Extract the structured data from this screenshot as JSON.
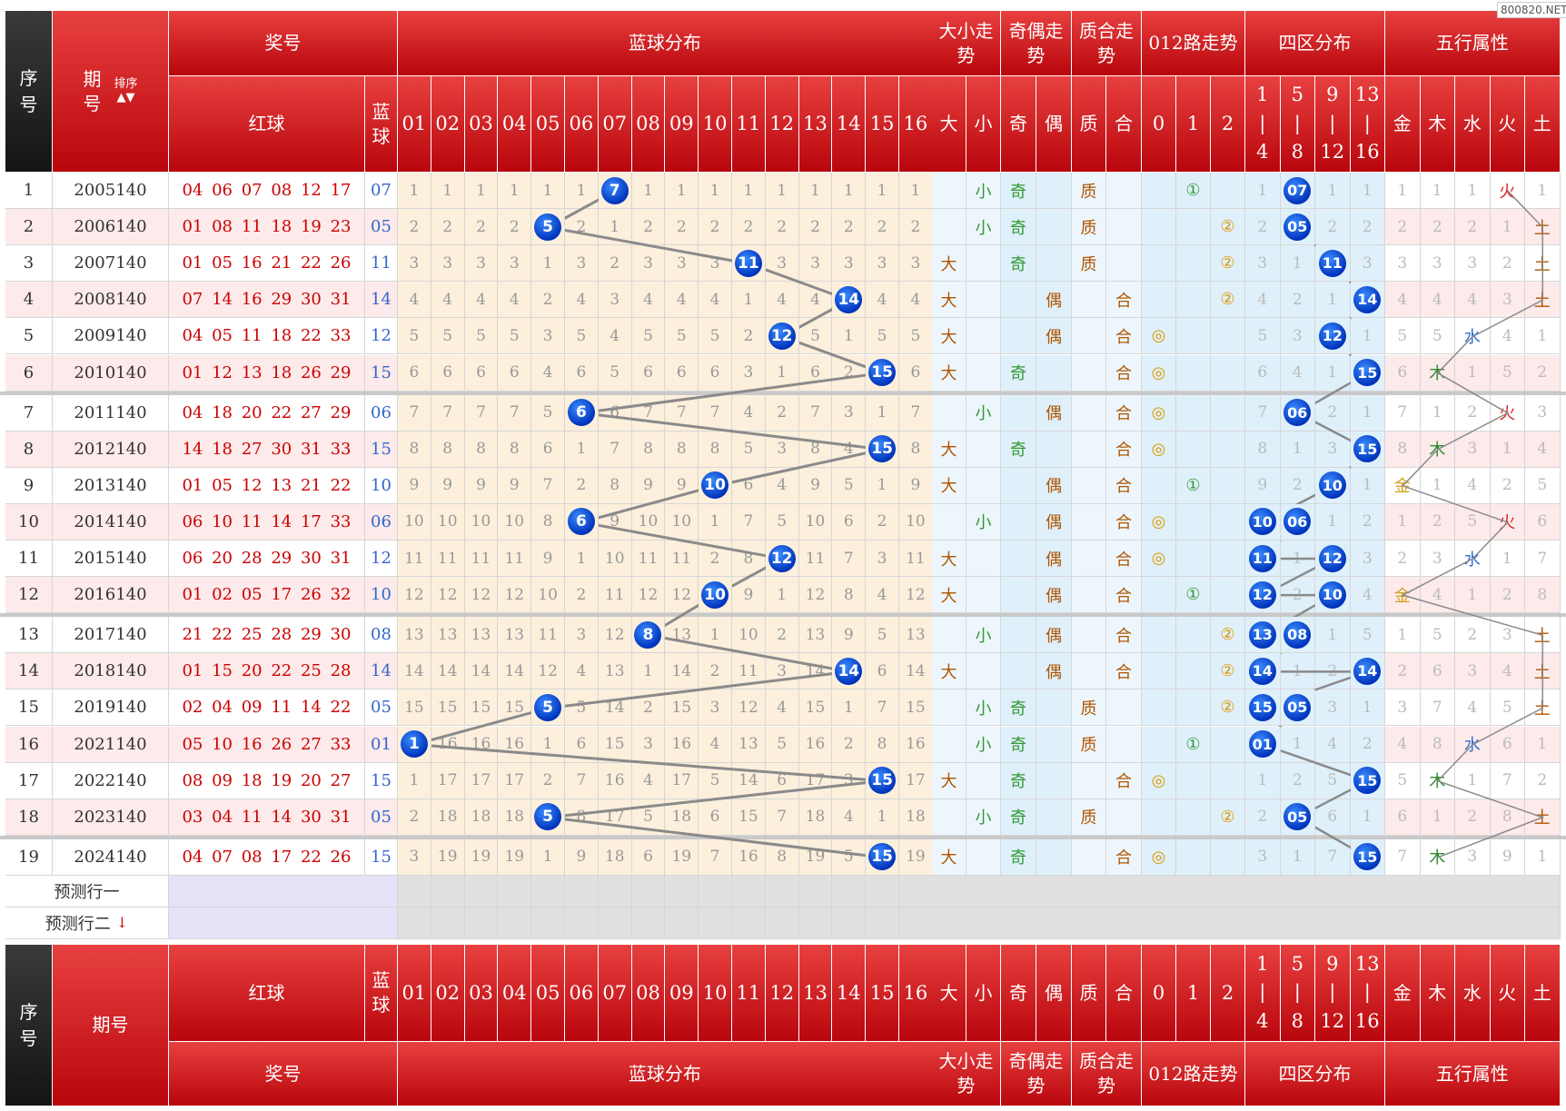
{
  "watermark": "800820.NET",
  "header": {
    "seq": "序号",
    "issue": "期号",
    "sort_label": "排序",
    "sort_arrows": "▲▼",
    "prize": "奖号",
    "blue_dist": "蓝球分布",
    "size_trend": "大小走势",
    "parity_trend": "奇偶走势",
    "prime_trend": "质合走势",
    "road_trend": "012路走势",
    "zone_dist": "四区分布",
    "wx": "五行属性",
    "red_ball": "红球",
    "blue_ball": "蓝球",
    "nums": [
      "01",
      "02",
      "03",
      "04",
      "05",
      "06",
      "07",
      "08",
      "09",
      "10",
      "11",
      "12",
      "13",
      "14",
      "15",
      "16"
    ],
    "big": "大",
    "small": "小",
    "odd": "奇",
    "even": "偶",
    "prime": "质",
    "composite": "合",
    "road": [
      "0",
      "1",
      "2"
    ],
    "zones": [
      {
        "a": "1",
        "b": "4"
      },
      {
        "a": "5",
        "b": "8"
      },
      {
        "a": "9",
        "b": "12"
      },
      {
        "a": "13",
        "b": "16"
      }
    ],
    "zone_sep": "|",
    "wx_names": [
      "金",
      "木",
      "水",
      "火",
      "土"
    ]
  },
  "rows": [
    {
      "seq": "1",
      "issue": "2005140",
      "red": "04 06 07 08 12 17",
      "blue": "07",
      "blue_miss": [
        "1",
        "1",
        "1",
        "1",
        "1",
        "1",
        "",
        "1",
        "1",
        "1",
        "1",
        "1",
        "1",
        "1",
        "1",
        "1"
      ],
      "size": "小",
      "parity": "奇",
      "prime": "质",
      "road": "①",
      "zone": [
        "1",
        "07",
        "1",
        "1"
      ],
      "wx": [
        "1",
        "1",
        "1",
        "火",
        "1"
      ]
    },
    {
      "seq": "2",
      "issue": "2006140",
      "red": "01 08 11 18 19 23",
      "blue": "05",
      "blue_miss": [
        "2",
        "2",
        "2",
        "2",
        "",
        "2",
        "1",
        "2",
        "2",
        "2",
        "2",
        "2",
        "2",
        "2",
        "2",
        "2"
      ],
      "size": "小",
      "parity": "奇",
      "prime": "质",
      "road": "②",
      "zone": [
        "2",
        "05",
        "2",
        "2"
      ],
      "wx": [
        "2",
        "2",
        "2",
        "1",
        "土"
      ]
    },
    {
      "seq": "3",
      "issue": "2007140",
      "red": "01 05 16 21 22 26",
      "blue": "11",
      "blue_miss": [
        "3",
        "3",
        "3",
        "3",
        "1",
        "3",
        "2",
        "3",
        "3",
        "3",
        "",
        "3",
        "3",
        "3",
        "3",
        "3"
      ],
      "size": "大",
      "parity": "奇",
      "prime": "质",
      "road": "②",
      "zone": [
        "3",
        "1",
        "11",
        "3"
      ],
      "wx": [
        "3",
        "3",
        "3",
        "2",
        "土"
      ]
    },
    {
      "seq": "4",
      "issue": "2008140",
      "red": "07 14 16 29 30 31",
      "blue": "14",
      "blue_miss": [
        "4",
        "4",
        "4",
        "4",
        "2",
        "4",
        "3",
        "4",
        "4",
        "4",
        "1",
        "4",
        "4",
        "",
        "4",
        "4"
      ],
      "size": "大",
      "parity": "偶",
      "prime": "合",
      "road": "②",
      "zone": [
        "4",
        "2",
        "1",
        "14"
      ],
      "wx": [
        "4",
        "4",
        "4",
        "3",
        "土"
      ]
    },
    {
      "seq": "5",
      "issue": "2009140",
      "red": "04 05 11 18 22 33",
      "blue": "12",
      "blue_miss": [
        "5",
        "5",
        "5",
        "5",
        "3",
        "5",
        "4",
        "5",
        "5",
        "5",
        "2",
        "",
        "5",
        "1",
        "5",
        "5"
      ],
      "size": "大",
      "parity": "偶",
      "prime": "合",
      "road": "◎",
      "zone": [
        "5",
        "3",
        "12",
        "1"
      ],
      "wx": [
        "5",
        "5",
        "水",
        "4",
        "1"
      ]
    },
    {
      "seq": "6",
      "issue": "2010140",
      "red": "01 12 13 18 26 29",
      "blue": "15",
      "blue_miss": [
        "6",
        "6",
        "6",
        "6",
        "4",
        "6",
        "5",
        "6",
        "6",
        "6",
        "3",
        "1",
        "6",
        "2",
        "",
        "6"
      ],
      "size": "大",
      "parity": "奇",
      "prime": "合",
      "road": "◎",
      "zone": [
        "6",
        "4",
        "1",
        "15"
      ],
      "wx": [
        "6",
        "木",
        "1",
        "5",
        "2"
      ]
    },
    {
      "seq": "7",
      "issue": "2011140",
      "red": "04 18 20 22 27 29",
      "blue": "06",
      "blue_miss": [
        "7",
        "7",
        "7",
        "7",
        "5",
        "",
        "6",
        "7",
        "7",
        "7",
        "4",
        "2",
        "7",
        "3",
        "1",
        "7"
      ],
      "size": "小",
      "parity": "偶",
      "prime": "合",
      "road": "◎",
      "zone": [
        "7",
        "06",
        "2",
        "1"
      ],
      "wx": [
        "7",
        "1",
        "2",
        "火",
        "3"
      ]
    },
    {
      "seq": "8",
      "issue": "2012140",
      "red": "14 18 27 30 31 33",
      "blue": "15",
      "blue_miss": [
        "8",
        "8",
        "8",
        "8",
        "6",
        "1",
        "7",
        "8",
        "8",
        "8",
        "5",
        "3",
        "8",
        "4",
        "",
        "8"
      ],
      "size": "大",
      "parity": "奇",
      "prime": "合",
      "road": "◎",
      "zone": [
        "8",
        "1",
        "3",
        "15"
      ],
      "wx": [
        "8",
        "木",
        "3",
        "1",
        "4"
      ]
    },
    {
      "seq": "9",
      "issue": "2013140",
      "red": "01 05 12 13 21 22",
      "blue": "10",
      "blue_miss": [
        "9",
        "9",
        "9",
        "9",
        "7",
        "2",
        "8",
        "9",
        "9",
        "",
        "6",
        "4",
        "9",
        "5",
        "1",
        "9"
      ],
      "size": "大",
      "parity": "偶",
      "prime": "合",
      "road": "①",
      "zone": [
        "9",
        "2",
        "10",
        "1"
      ],
      "wx": [
        "金",
        "1",
        "4",
        "2",
        "5"
      ]
    },
    {
      "seq": "10",
      "issue": "2014140",
      "red": "06 10 11 14 17 33",
      "blue": "06",
      "blue_miss": [
        "10",
        "10",
        "10",
        "10",
        "8",
        "",
        "9",
        "10",
        "10",
        "1",
        "7",
        "5",
        "10",
        "6",
        "2",
        "10"
      ],
      "size": "小",
      "parity": "偶",
      "prime": "合",
      "road": "◎",
      "zone": [
        "10",
        "06",
        "1",
        "2"
      ],
      "wx": [
        "1",
        "2",
        "5",
        "火",
        "6"
      ]
    },
    {
      "seq": "11",
      "issue": "2015140",
      "red": "06 20 28 29 30 31",
      "blue": "12",
      "blue_miss": [
        "11",
        "11",
        "11",
        "11",
        "9",
        "1",
        "10",
        "11",
        "11",
        "2",
        "8",
        "",
        "11",
        "7",
        "3",
        "11"
      ],
      "size": "大",
      "parity": "偶",
      "prime": "合",
      "road": "◎",
      "zone": [
        "11",
        "1",
        "12",
        "3"
      ],
      "wx": [
        "2",
        "3",
        "水",
        "1",
        "7"
      ]
    },
    {
      "seq": "12",
      "issue": "2016140",
      "red": "01 02 05 17 26 32",
      "blue": "10",
      "blue_miss": [
        "12",
        "12",
        "12",
        "12",
        "10",
        "2",
        "11",
        "12",
        "12",
        "",
        "9",
        "1",
        "12",
        "8",
        "4",
        "12"
      ],
      "size": "大",
      "parity": "偶",
      "prime": "合",
      "road": "①",
      "zone": [
        "12",
        "2",
        "10",
        "4"
      ],
      "wx": [
        "金",
        "4",
        "1",
        "2",
        "8"
      ]
    },
    {
      "seq": "13",
      "issue": "2017140",
      "red": "21 22 25 28 29 30",
      "blue": "08",
      "blue_miss": [
        "13",
        "13",
        "13",
        "13",
        "11",
        "3",
        "12",
        "",
        "13",
        "1",
        "10",
        "2",
        "13",
        "9",
        "5",
        "13"
      ],
      "size": "小",
      "parity": "偶",
      "prime": "合",
      "road": "②",
      "zone": [
        "13",
        "08",
        "1",
        "5"
      ],
      "wx": [
        "1",
        "5",
        "2",
        "3",
        "土"
      ]
    },
    {
      "seq": "14",
      "issue": "2018140",
      "red": "01 15 20 22 25 28",
      "blue": "14",
      "blue_miss": [
        "14",
        "14",
        "14",
        "14",
        "12",
        "4",
        "13",
        "1",
        "14",
        "2",
        "11",
        "3",
        "14",
        "",
        "6",
        "14"
      ],
      "size": "大",
      "parity": "偶",
      "prime": "合",
      "road": "②",
      "zone": [
        "14",
        "1",
        "2",
        "14"
      ],
      "wx": [
        "2",
        "6",
        "3",
        "4",
        "土"
      ]
    },
    {
      "seq": "15",
      "issue": "2019140",
      "red": "02 04 09 11 14 22",
      "blue": "05",
      "blue_miss": [
        "15",
        "15",
        "15",
        "15",
        "",
        "5",
        "14",
        "2",
        "15",
        "3",
        "12",
        "4",
        "15",
        "1",
        "7",
        "15"
      ],
      "size": "小",
      "parity": "奇",
      "prime": "质",
      "road": "②",
      "zone": [
        "15",
        "05",
        "3",
        "1"
      ],
      "wx": [
        "3",
        "7",
        "4",
        "5",
        "土"
      ]
    },
    {
      "seq": "16",
      "issue": "2021140",
      "red": "05 10 16 26 27 33",
      "blue": "01",
      "blue_miss": [
        "",
        "16",
        "16",
        "16",
        "1",
        "6",
        "15",
        "3",
        "16",
        "4",
        "13",
        "5",
        "16",
        "2",
        "8",
        "16"
      ],
      "size": "小",
      "parity": "奇",
      "prime": "质",
      "road": "①",
      "zone": [
        "01",
        "1",
        "4",
        "2"
      ],
      "wx": [
        "4",
        "8",
        "水",
        "6",
        "1"
      ]
    },
    {
      "seq": "17",
      "issue": "2022140",
      "red": "08 09 18 19 20 27",
      "blue": "15",
      "blue_miss": [
        "1",
        "17",
        "17",
        "17",
        "2",
        "7",
        "16",
        "4",
        "17",
        "5",
        "14",
        "6",
        "17",
        "3",
        "",
        "17"
      ],
      "size": "大",
      "parity": "奇",
      "prime": "合",
      "road": "◎",
      "zone": [
        "1",
        "2",
        "5",
        "15"
      ],
      "wx": [
        "5",
        "木",
        "1",
        "7",
        "2"
      ]
    },
    {
      "seq": "18",
      "issue": "2023140",
      "red": "03 04 11 14 30 31",
      "blue": "05",
      "blue_miss": [
        "2",
        "18",
        "18",
        "18",
        "",
        "8",
        "17",
        "5",
        "18",
        "6",
        "15",
        "7",
        "18",
        "4",
        "1",
        "18"
      ],
      "size": "小",
      "parity": "奇",
      "prime": "质",
      "road": "②",
      "zone": [
        "2",
        "05",
        "6",
        "1"
      ],
      "wx": [
        "6",
        "1",
        "2",
        "8",
        "土"
      ]
    },
    {
      "seq": "19",
      "issue": "2024140",
      "red": "04 07 08 17 22 26",
      "blue": "15",
      "blue_miss": [
        "3",
        "19",
        "19",
        "19",
        "1",
        "9",
        "18",
        "6",
        "19",
        "7",
        "16",
        "8",
        "19",
        "5",
        "",
        "19"
      ],
      "size": "大",
      "parity": "奇",
      "prime": "合",
      "road": "◎",
      "zone": [
        "3",
        "1",
        "7",
        "15"
      ],
      "wx": [
        "7",
        "木",
        "3",
        "9",
        "1"
      ]
    }
  ],
  "predict": {
    "row1": "预测行一",
    "row2": "预测行二",
    "arrow": "↓"
  },
  "colors": {
    "header_red": "#c40c14",
    "ball_blue": "#0a48d8",
    "line_gray": "#8a8a8a"
  }
}
